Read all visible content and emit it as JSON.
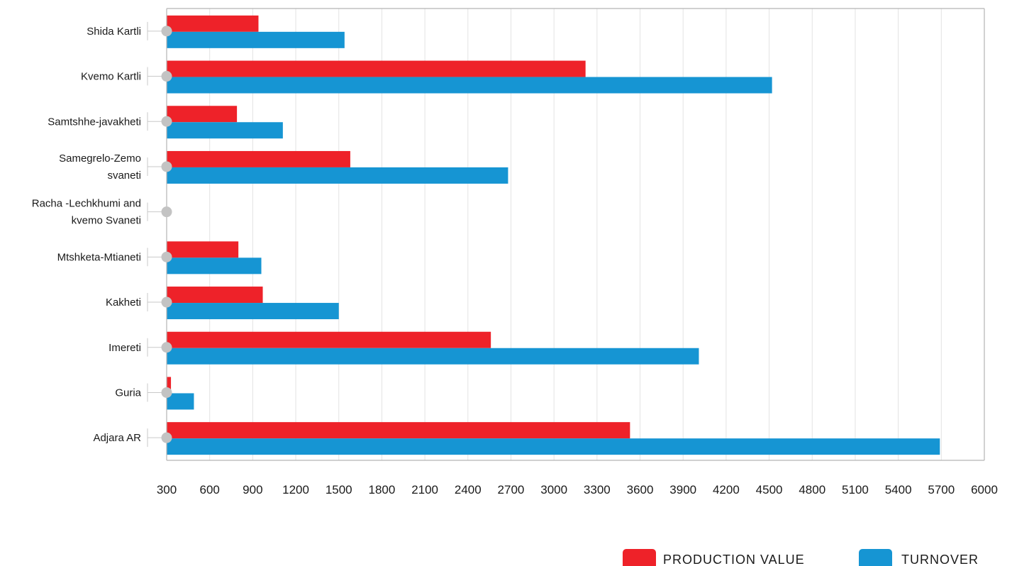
{
  "chart_data": {
    "type": "bar",
    "orientation": "horizontal",
    "title": "",
    "xlabel": "",
    "ylabel": "",
    "xlim": [
      300,
      6000
    ],
    "x_ticks": [
      300,
      600,
      900,
      1200,
      1500,
      1800,
      2100,
      2400,
      2700,
      3000,
      3300,
      3600,
      3900,
      4200,
      4500,
      4800,
      5100,
      5400,
      5700,
      6000
    ],
    "grid": true,
    "legend_position": "bottom-right",
    "categories": [
      [
        "Shida Kartli"
      ],
      [
        "Kvemo Kartli"
      ],
      [
        "Samtshhe-javakheti"
      ],
      [
        "Samegrelo-Zemo",
        "svaneti"
      ],
      [
        "Racha -Lechkhumi and",
        "kvemo Svaneti"
      ],
      [
        "Mtshketa-Mtianeti"
      ],
      [
        "Kakheti"
      ],
      [
        "Imereti"
      ],
      [
        "Guria"
      ],
      [
        "Adjara AR"
      ]
    ],
    "series": [
      {
        "name": "PRODUCTION VALUE",
        "color": "#ee2229",
        "values": [
          940,
          3220,
          790,
          1580,
          300,
          800,
          970,
          2560,
          330,
          3530
        ]
      },
      {
        "name": "TURNOVER",
        "color": "#1695d3",
        "values": [
          1540,
          4520,
          1110,
          2680,
          300,
          960,
          1500,
          4010,
          490,
          5690
        ]
      }
    ]
  }
}
